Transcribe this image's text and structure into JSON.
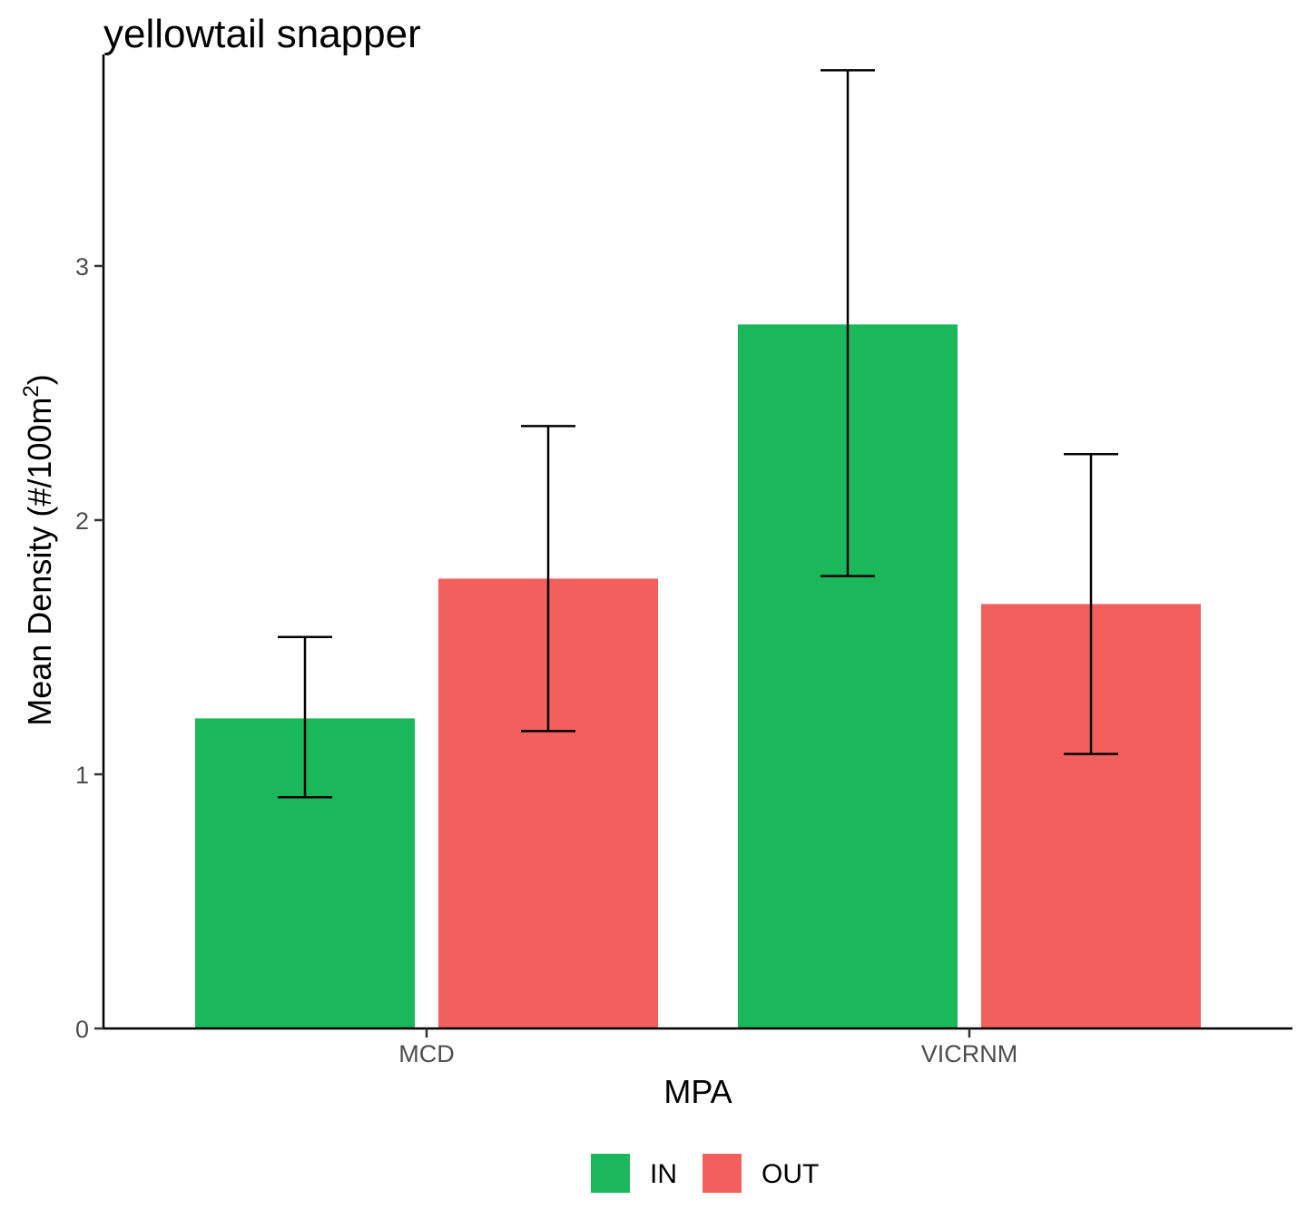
{
  "chart_data": {
    "type": "bar",
    "title": "yellowtail snapper",
    "xlabel": "MPA",
    "ylabel_main": "Mean Density (#/100m",
    "ylabel_sup": "2",
    "ylabel_close": ")",
    "categories": [
      "MCD",
      "VICRNM"
    ],
    "ylim": [
      0,
      3.8
    ],
    "yticks": [
      0,
      1,
      2,
      3
    ],
    "grid": false,
    "legend_position": "bottom",
    "series": [
      {
        "name": "IN",
        "color": "#1bb75b",
        "values": [
          1.22,
          2.77
        ],
        "error_low": [
          0.91,
          1.78
        ],
        "error_high": [
          1.54,
          3.77
        ]
      },
      {
        "name": "OUT",
        "color": "#f2605d",
        "values": [
          1.77,
          1.67
        ],
        "error_low": [
          1.17,
          1.08
        ],
        "error_high": [
          2.37,
          2.26
        ]
      }
    ]
  }
}
